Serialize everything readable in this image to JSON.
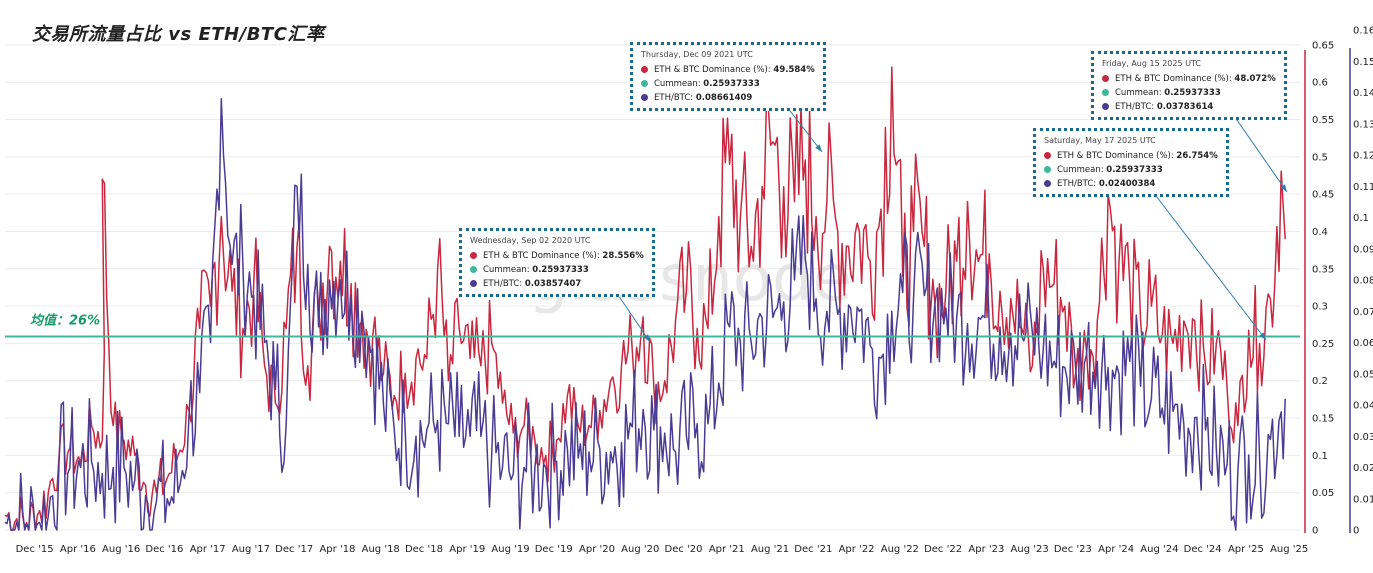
{
  "title": "交易所流量占比 vs  ETH/BTC汇率",
  "watermark": "glassnode",
  "mean_label": "均值：26%",
  "colors": {
    "dominance": "#c8283f",
    "ethbtc": "#4b3c93",
    "cummean": "#3fb89a",
    "mean_label": "#1a9a6a",
    "tooltip_border": "#1a6a8c",
    "arrow": "#2f7ea8"
  },
  "tooltips": [
    {
      "date": "Thursday, Dec 09 2021 UTC",
      "rows": [
        {
          "label": "ETH & BTC Dominance (%): ",
          "value": "49.584%",
          "color": "#c8283f"
        },
        {
          "label": "Cummean: ",
          "value": "0.25937333",
          "color": "#3fb89a"
        },
        {
          "label": "ETH/BTC: ",
          "value": "0.08661409",
          "color": "#4b3c93"
        }
      ]
    },
    {
      "date": "Wednesday, Sep 02 2020 UTC",
      "rows": [
        {
          "label": "ETH & BTC Dominance (%): ",
          "value": "28.556%",
          "color": "#c8283f"
        },
        {
          "label": "Cummean: ",
          "value": "0.25937333",
          "color": "#3fb89a"
        },
        {
          "label": "ETH/BTC: ",
          "value": "0.03857407",
          "color": "#4b3c93"
        }
      ]
    },
    {
      "date": "Friday, Aug 15 2025 UTC",
      "rows": [
        {
          "label": "ETH & BTC Dominance (%): ",
          "value": "48.072%",
          "color": "#c8283f"
        },
        {
          "label": "Cummean: ",
          "value": "0.25937333",
          "color": "#3fb89a"
        },
        {
          "label": "ETH/BTC: ",
          "value": "0.03783614",
          "color": "#4b3c93"
        }
      ]
    },
    {
      "date": "Saturday, May 17 2025 UTC",
      "rows": [
        {
          "label": "ETH & BTC Dominance (%): ",
          "value": "26.754%",
          "color": "#c8283f"
        },
        {
          "label": "Cummean: ",
          "value": "0.25937333",
          "color": "#3fb89a"
        },
        {
          "label": "ETH/BTC: ",
          "value": "0.02400384",
          "color": "#4b3c93"
        }
      ]
    }
  ],
  "chart_data": {
    "type": "line",
    "title": "交易所流量占比 vs  ETH/BTC汇率",
    "x_tick_labels": [
      "Dec '15",
      "Apr '16",
      "Aug '16",
      "Dec '16",
      "Apr '17",
      "Aug '17",
      "Dec '17",
      "Apr '18",
      "Aug '18",
      "Dec '18",
      "Apr '19",
      "Aug '19",
      "Dec '19",
      "Apr '20",
      "Aug '20",
      "Dec '20",
      "Apr '21",
      "Aug '21",
      "Dec '21",
      "Apr '22",
      "Aug '22",
      "Dec '22",
      "Apr '23",
      "Aug '23",
      "Dec '23",
      "Apr '24",
      "Aug '24",
      "Dec '24",
      "Apr '25",
      "Aug '25"
    ],
    "y_left": {
      "ticks": [
        "0",
        "0.05",
        "0.1",
        "0.15",
        "0.2",
        "0.25",
        "0.3",
        "0.35",
        "0.4",
        "0.45",
        "0.5",
        "0.55",
        "0.6",
        "0.65"
      ],
      "range": [
        0,
        0.67
      ],
      "color": "#c8283f"
    },
    "y_right": {
      "ticks": [
        "0",
        "0.01",
        "0.02",
        "0.03",
        "0.04",
        "0.05",
        "0.06",
        "0.07",
        "0.08",
        "0.09",
        "0.1",
        "0.11",
        "0.12",
        "0.13",
        "0.14",
        "0.15",
        "0.16"
      ],
      "range": [
        0,
        0.16
      ],
      "color": "#4b3c93"
    },
    "mean_line": 0.25937333,
    "grid": "horizontal",
    "series": [
      {
        "name": "ETH & BTC Dominance (%)",
        "axis": "left",
        "color": "#c8283f",
        "points": [
          [
            "Oct '15",
            0.02
          ],
          [
            "Dec '15",
            0.01
          ],
          [
            "Jan '16",
            0.02
          ],
          [
            "Feb '16",
            0.05
          ],
          [
            "Mar '16",
            0.1
          ],
          [
            "Apr '16",
            0.11
          ],
          [
            "May '16",
            0.09
          ],
          [
            "Jun '16",
            0.14
          ],
          [
            "Jul '16",
            0.12
          ],
          [
            "Jul '16",
            0.47
          ],
          [
            "Aug '16",
            0.14
          ],
          [
            "Sep '16",
            0.12
          ],
          [
            "Oct '16",
            0.1
          ],
          [
            "Nov '16",
            0.06
          ],
          [
            "Dec '16",
            0.05
          ],
          [
            "Jan '17",
            0.07
          ],
          [
            "Feb '17",
            0.1
          ],
          [
            "Mar '17",
            0.16
          ],
          [
            "Apr '17",
            0.27
          ],
          [
            "May '17",
            0.3
          ],
          [
            "Jun '17",
            0.42
          ],
          [
            "Jul '17",
            0.32
          ],
          [
            "Aug '17",
            0.27
          ],
          [
            "Sep '17",
            0.33
          ],
          [
            "Oct '17",
            0.22
          ],
          [
            "Nov '17",
            0.17
          ],
          [
            "Dec '17",
            0.27
          ],
          [
            "Jan '18",
            0.38
          ],
          [
            "Feb '18",
            0.22
          ],
          [
            "Mar '18",
            0.3
          ],
          [
            "Apr '18",
            0.38
          ],
          [
            "May '18",
            0.36
          ],
          [
            "Jun '18",
            0.33
          ],
          [
            "Jul '18",
            0.28
          ],
          [
            "Aug '18",
            0.26
          ],
          [
            "Sep '18",
            0.21
          ],
          [
            "Oct '18",
            0.18
          ],
          [
            "Nov '18",
            0.21
          ],
          [
            "Dec '18",
            0.23
          ],
          [
            "Jan '19",
            0.23
          ],
          [
            "Feb '19",
            0.35
          ],
          [
            "Mar '19",
            0.2
          ],
          [
            "Apr '19",
            0.27
          ],
          [
            "May '19",
            0.23
          ],
          [
            "Jun '19",
            0.22
          ],
          [
            "Jul '19",
            0.25
          ],
          [
            "Aug '19",
            0.17
          ],
          [
            "Sep '19",
            0.13
          ],
          [
            "Oct '19",
            0.14
          ],
          [
            "Nov '19",
            0.12
          ],
          [
            "Dec '19",
            0.1
          ],
          [
            "Jan '20",
            0.12
          ],
          [
            "Feb '20",
            0.18
          ],
          [
            "Mar '20",
            0.14
          ],
          [
            "Apr '20",
            0.14
          ],
          [
            "May '20",
            0.16
          ],
          [
            "Jun '20",
            0.2
          ],
          [
            "Jul '20",
            0.22
          ],
          [
            "Aug '20",
            0.24
          ],
          [
            "Sep '20",
            0.28556
          ],
          [
            "Oct '20",
            0.19
          ],
          [
            "Nov '20",
            0.2
          ],
          [
            "Dec '20",
            0.28
          ],
          [
            "Jan '21",
            0.32
          ],
          [
            "Feb '21",
            0.27
          ],
          [
            "Mar '21",
            0.27
          ],
          [
            "Apr '21",
            0.42
          ],
          [
            "May '21",
            0.49
          ],
          [
            "Jun '21",
            0.42
          ],
          [
            "Jul '21",
            0.38
          ],
          [
            "Aug '21",
            0.46
          ],
          [
            "Sep '21",
            0.52
          ],
          [
            "Oct '21",
            0.46
          ],
          [
            "Nov '21",
            0.44
          ],
          [
            "Dec '21",
            0.49584
          ],
          [
            "Jan '22",
            0.42
          ],
          [
            "Feb '22",
            0.44
          ],
          [
            "Mar '22",
            0.4
          ],
          [
            "Apr '22",
            0.38
          ],
          [
            "May '22",
            0.4
          ],
          [
            "Jun '22",
            0.36
          ],
          [
            "Jul '22",
            0.43
          ],
          [
            "Aug '22",
            0.62
          ],
          [
            "Sep '22",
            0.34
          ],
          [
            "Oct '22",
            0.4
          ],
          [
            "Nov '22",
            0.38
          ],
          [
            "Dec '22",
            0.3
          ],
          [
            "Jan '23",
            0.32
          ],
          [
            "Feb '23",
            0.36
          ],
          [
            "Mar '23",
            0.44
          ],
          [
            "Apr '23",
            0.36
          ],
          [
            "May '23",
            0.37
          ],
          [
            "Jun '23",
            0.32
          ],
          [
            "Jul '23",
            0.31
          ],
          [
            "Aug '23",
            0.27
          ],
          [
            "Sep '23",
            0.22
          ],
          [
            "Oct '23",
            0.35
          ],
          [
            "Nov '23",
            0.33
          ],
          [
            "Dec '23",
            0.3
          ],
          [
            "Jan '24",
            0.21
          ],
          [
            "Feb '24",
            0.24
          ],
          [
            "Mar '24",
            0.28
          ],
          [
            "Apr '24",
            0.45
          ],
          [
            "May '24",
            0.36
          ],
          [
            "Jun '24",
            0.33
          ],
          [
            "Jul '24",
            0.28
          ],
          [
            "Aug '24",
            0.3
          ],
          [
            "Sep '24",
            0.26
          ],
          [
            "Oct '24",
            0.25
          ],
          [
            "Nov '24",
            0.28
          ],
          [
            "Dec '24",
            0.28
          ],
          [
            "Jan '25",
            0.22
          ],
          [
            "Feb '25",
            0.25
          ],
          [
            "Mar '25",
            0.19
          ],
          [
            "Apr '25",
            0.14
          ],
          [
            "May '25",
            0.26754
          ],
          [
            "Jun '25",
            0.25
          ],
          [
            "Jul '25",
            0.31
          ],
          [
            "Aug '25",
            0.48072
          ],
          [
            "Aug '25",
            0.39
          ]
        ]
      },
      {
        "name": "ETH/BTC",
        "axis": "right",
        "color": "#4b3c93",
        "points": [
          [
            "Oct '15",
            0.0025
          ],
          [
            "Dec '15",
            0.002
          ],
          [
            "Jan '16",
            0.002
          ],
          [
            "Feb '16",
            0.0045
          ],
          [
            "Mar '16",
            0.022
          ],
          [
            "Apr '16",
            0.02
          ],
          [
            "May '16",
            0.02
          ],
          [
            "Jun '16",
            0.022
          ],
          [
            "Jul '16",
            0.018
          ],
          [
            "Aug '16",
            0.02
          ],
          [
            "Sep '16",
            0.02
          ],
          [
            "Oct '16",
            0.016
          ],
          [
            "Nov '16",
            0.011
          ],
          [
            "Dec '16",
            0.009
          ],
          [
            "Jan '17",
            0.01
          ],
          [
            "Feb '17",
            0.012
          ],
          [
            "Mar '17",
            0.036
          ],
          [
            "Apr '17",
            0.044
          ],
          [
            "May '17",
            0.06
          ],
          [
            "Jun '17",
            0.138
          ],
          [
            "Jul '17",
            0.085
          ],
          [
            "Aug '17",
            0.085
          ],
          [
            "Sep '17",
            0.075
          ],
          [
            "Oct '17",
            0.06
          ],
          [
            "Nov '17",
            0.045
          ],
          [
            "Dec '17",
            0.034
          ],
          [
            "Jan '18",
            0.11
          ],
          [
            "Feb '18",
            0.085
          ],
          [
            "Mar '18",
            0.065
          ],
          [
            "Apr '18",
            0.08
          ],
          [
            "May '18",
            0.08
          ],
          [
            "Jun '18",
            0.075
          ],
          [
            "Jul '18",
            0.07
          ],
          [
            "Aug '18",
            0.058
          ],
          [
            "Sep '18",
            0.04
          ],
          [
            "Oct '18",
            0.032
          ],
          [
            "Nov '18",
            0.032
          ],
          [
            "Dec '18",
            0.03
          ],
          [
            "Jan '19",
            0.032
          ],
          [
            "Feb '19",
            0.035
          ],
          [
            "Mar '19",
            0.034
          ],
          [
            "Apr '19",
            0.03
          ],
          [
            "May '19",
            0.03
          ],
          [
            "Jun '19",
            0.03
          ],
          [
            "Jul '19",
            0.024
          ],
          [
            "Aug '19",
            0.02
          ],
          [
            "Sep '19",
            0.018
          ],
          [
            "Oct '19",
            0.02
          ],
          [
            "Nov '19",
            0.02
          ],
          [
            "Dec '19",
            0.02
          ],
          [
            "Jan '20",
            0.022
          ],
          [
            "Feb '20",
            0.026
          ],
          [
            "Mar '20",
            0.023
          ],
          [
            "Apr '20",
            0.025
          ],
          [
            "May '20",
            0.026
          ],
          [
            "Jun '20",
            0.025
          ],
          [
            "Jul '20",
            0.028
          ],
          [
            "Aug '20",
            0.033
          ],
          [
            "Sep '20",
            0.03857
          ],
          [
            "Oct '20",
            0.032
          ],
          [
            "Nov '20",
            0.031
          ],
          [
            "Dec '20",
            0.025
          ],
          [
            "Jan '21",
            0.03
          ],
          [
            "Feb '21",
            0.034
          ],
          [
            "Mar '21",
            0.034
          ],
          [
            "Apr '21",
            0.047
          ],
          [
            "May '21",
            0.065
          ],
          [
            "Jun '21",
            0.06
          ],
          [
            "Jul '21",
            0.06
          ],
          [
            "Aug '21",
            0.068
          ],
          [
            "Sep '21",
            0.068
          ],
          [
            "Oct '21",
            0.073
          ],
          [
            "Nov '21",
            0.08
          ],
          [
            "Dec '21",
            0.0866
          ],
          [
            "Jan '22",
            0.074
          ],
          [
            "Feb '22",
            0.07
          ],
          [
            "Mar '22",
            0.069
          ],
          [
            "Apr '22",
            0.072
          ],
          [
            "May '22",
            0.07
          ],
          [
            "Jun '22",
            0.059
          ],
          [
            "Jul '22",
            0.055
          ],
          [
            "Aug '22",
            0.07
          ],
          [
            "Sep '22",
            0.076
          ],
          [
            "Oct '22",
            0.074
          ],
          [
            "Nov '22",
            0.075
          ],
          [
            "Dec '22",
            0.073
          ],
          [
            "Jan '23",
            0.071
          ],
          [
            "Feb '23",
            0.068
          ],
          [
            "Mar '23",
            0.066
          ],
          [
            "Apr '23",
            0.068
          ],
          [
            "May '23",
            0.066
          ],
          [
            "Jun '23",
            0.065
          ],
          [
            "Jul '23",
            0.063
          ],
          [
            "Aug '23",
            0.062
          ],
          [
            "Sep '23",
            0.063
          ],
          [
            "Oct '23",
            0.058
          ],
          [
            "Nov '23",
            0.054
          ],
          [
            "Dec '23",
            0.052
          ],
          [
            "Jan '24",
            0.052
          ],
          [
            "Feb '24",
            0.056
          ],
          [
            "Mar '24",
            0.054
          ],
          [
            "Apr '24",
            0.052
          ],
          [
            "May '24",
            0.05
          ],
          [
            "Jun '24",
            0.054
          ],
          [
            "Jul '24",
            0.046
          ],
          [
            "Aug '24",
            0.042
          ],
          [
            "Sep '24",
            0.039
          ],
          [
            "Oct '24",
            0.038
          ],
          [
            "Nov '24",
            0.034
          ],
          [
            "Dec '24",
            0.036
          ],
          [
            "Jan '25",
            0.032
          ],
          [
            "Feb '25",
            0.026
          ],
          [
            "Mar '25",
            0.021
          ],
          [
            "Apr '25",
            0.019
          ],
          [
            "May '25",
            0.024
          ],
          [
            "Jun '25",
            0.023
          ],
          [
            "Jul '25",
            0.029
          ],
          [
            "Aug '25",
            0.0378
          ],
          [
            "Aug '25",
            0.042
          ]
        ]
      }
    ]
  }
}
